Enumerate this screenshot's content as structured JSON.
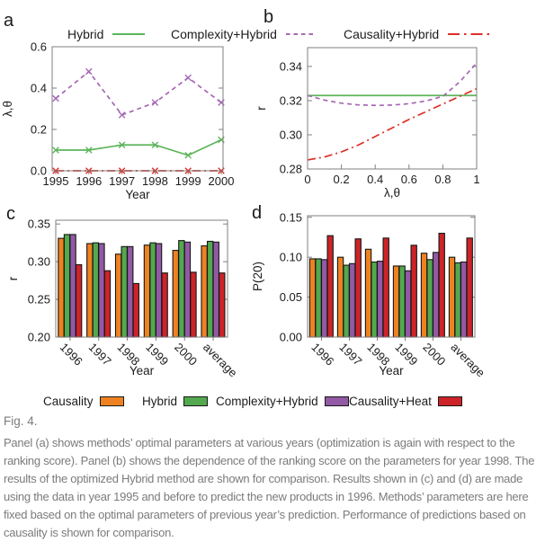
{
  "figure": {
    "panel_labels": [
      "a",
      "b",
      "c",
      "d"
    ],
    "fig_label": "Fig. 4.",
    "caption_lines": [
      "Panel (a) shows methods’ optimal parameters at various years (optimization is again with respect to the",
      "ranking score). Panel (b) shows the dependence of the ranking score on the parameters for year 1998. The",
      "results of the optimized Hybrid method are shown for comparison. Results shown in (c) and (d) are made",
      "using the data in year 1995 and before to predict the new products in 1996. Methods’ parameters are here",
      "fixed based on the optimal parameters of previous year’s prediction. Performance of predictions based on",
      "causality is shown for comparison."
    ]
  },
  "colors": {
    "causality": "#ee8220",
    "hybrid": "#53a94e",
    "complexity_hybrid": "#9259a5",
    "causality_heat": "#cc2428",
    "hybrid_line": "#5cb55a",
    "complexity_hybrid_line": "#a668b4",
    "causality_hybrid_line": "#dd2f28",
    "axis": "#7f7f7f",
    "text": "#1c1c1c",
    "caption_text": "#7b7b7b"
  },
  "top_legend": [
    {
      "label": "Hybrid",
      "style": "solid",
      "color_key": "hybrid_line"
    },
    {
      "label": "Complexity+Hybrid",
      "style": "dashed",
      "color_key": "complexity_hybrid_line"
    },
    {
      "label": "Causality+Hybrid",
      "style": "dashdot",
      "color_key": "causality_hybrid_line"
    }
  ],
  "bottom_legend": [
    {
      "label": "Causality",
      "color_key": "causality"
    },
    {
      "label": "Hybrid",
      "color_key": "hybrid"
    },
    {
      "label": "Complexity+Hybrid",
      "color_key": "complexity_hybrid"
    },
    {
      "label": "Causality+Heat",
      "color_key": "causality_heat"
    }
  ],
  "chart_data": [
    {
      "id": "a",
      "type": "line",
      "panel_label": "a",
      "x": [
        1995,
        1996,
        1997,
        1998,
        1999,
        2000
      ],
      "xtick_labels": [
        "1995",
        "1996",
        "1997",
        "1998",
        "1999",
        "2000"
      ],
      "xlabel": "Year",
      "ylabel": "λ,θ",
      "ylim": [
        0,
        0.6
      ],
      "ytick_values": [
        0.0,
        0.2,
        0.4,
        0.6
      ],
      "ytick_labels": [
        "0.0",
        "0.2",
        "0.4",
        "0.6"
      ],
      "marker": "x",
      "grid": false,
      "series": [
        {
          "name": "Hybrid",
          "style": "solid",
          "color_key": "hybrid_line",
          "values": [
            0.1,
            0.1,
            0.125,
            0.125,
            0.075,
            0.15
          ]
        },
        {
          "name": "Complexity+Hybrid",
          "style": "dashed",
          "color_key": "complexity_hybrid_line",
          "values": [
            0.35,
            0.48,
            0.27,
            0.33,
            0.45,
            0.33
          ]
        },
        {
          "name": "Causality+Hybrid",
          "style": "dashdot",
          "color_key": "causality_hybrid_line",
          "values": [
            0,
            0,
            0,
            0,
            0,
            0
          ]
        }
      ]
    },
    {
      "id": "b",
      "type": "line",
      "panel_label": "b",
      "x": [
        0,
        0.1,
        0.2,
        0.3,
        0.4,
        0.5,
        0.6,
        0.7,
        0.8,
        0.9,
        1.0
      ],
      "xlim": [
        0,
        1
      ],
      "xtick_values": [
        0,
        0.2,
        0.4,
        0.6,
        0.8,
        1
      ],
      "xtick_labels": [
        "0",
        "0.2",
        "0.4",
        "0.6",
        "0.8",
        "1"
      ],
      "xlabel": "λ,θ",
      "ylabel": "r",
      "ylim": [
        0.28,
        0.351
      ],
      "ytick_values": [
        0.28,
        0.3,
        0.32,
        0.34
      ],
      "ytick_labels": [
        "0.28",
        "0.30",
        "0.32",
        "0.34"
      ],
      "grid": false,
      "series": [
        {
          "name": "Hybrid",
          "style": "solid",
          "color_key": "hybrid_line",
          "values": [
            0.323,
            0.323,
            0.323,
            0.323,
            0.323,
            0.323,
            0.323,
            0.323,
            0.323,
            0.323,
            0.323
          ]
        },
        {
          "name": "Complexity+Hybrid",
          "style": "dashed",
          "color_key": "complexity_hybrid_line",
          "values": [
            0.323,
            0.3203,
            0.3185,
            0.3175,
            0.3172,
            0.3174,
            0.3182,
            0.3198,
            0.3225,
            0.331,
            0.342
          ]
        },
        {
          "name": "Causality+Hybrid",
          "style": "dashdot",
          "color_key": "causality_hybrid_line",
          "values": [
            0.2853,
            0.287,
            0.29,
            0.294,
            0.299,
            0.304,
            0.309,
            0.3135,
            0.318,
            0.3225,
            0.327
          ]
        }
      ]
    },
    {
      "id": "c",
      "type": "bar",
      "panel_label": "c",
      "categories": [
        "1996",
        "1997",
        "1998",
        "1999",
        "2000",
        "average"
      ],
      "xlabel": "Year",
      "ylabel": "r",
      "ylim": [
        0.2,
        0.355
      ],
      "ytick_values": [
        0.2,
        0.25,
        0.3,
        0.35
      ],
      "ytick_labels": [
        "0.20",
        "0.25",
        "0.30",
        "0.35"
      ],
      "grid": false,
      "series": [
        {
          "name": "Causality",
          "color_key": "causality",
          "values": [
            0.331,
            0.324,
            0.31,
            0.322,
            0.315,
            0.321
          ]
        },
        {
          "name": "Hybrid",
          "color_key": "hybrid",
          "values": [
            0.336,
            0.325,
            0.32,
            0.325,
            0.328,
            0.327
          ]
        },
        {
          "name": "Complexity+Hybrid",
          "color_key": "complexity_hybrid",
          "values": [
            0.336,
            0.324,
            0.32,
            0.324,
            0.326,
            0.326
          ]
        },
        {
          "name": "Causality+Heat",
          "color_key": "causality_heat",
          "values": [
            0.296,
            0.288,
            0.271,
            0.285,
            0.286,
            0.285
          ]
        }
      ]
    },
    {
      "id": "d",
      "type": "bar",
      "panel_label": "d",
      "categories": [
        "1996",
        "1997",
        "1998",
        "1999",
        "2000",
        "average"
      ],
      "xlabel": "Year",
      "ylabel": "P(20)",
      "ylim": [
        0,
        0.152
      ],
      "ytick_values": [
        0.0,
        0.05,
        0.1,
        0.15
      ],
      "ytick_labels": [
        "0.00",
        "0.05",
        "0.10",
        "0.15"
      ],
      "grid": false,
      "series": [
        {
          "name": "Causality",
          "color_key": "causality",
          "values": [
            0.098,
            0.1,
            0.11,
            0.089,
            0.105,
            0.1
          ]
        },
        {
          "name": "Hybrid",
          "color_key": "hybrid",
          "values": [
            0.098,
            0.09,
            0.094,
            0.089,
            0.097,
            0.093
          ]
        },
        {
          "name": "Complexity+Hybrid",
          "color_key": "complexity_hybrid",
          "values": [
            0.097,
            0.092,
            0.095,
            0.083,
            0.106,
            0.094
          ]
        },
        {
          "name": "Causality+Heat",
          "color_key": "causality_heat",
          "values": [
            0.127,
            0.123,
            0.124,
            0.115,
            0.13,
            0.124
          ]
        }
      ]
    }
  ]
}
